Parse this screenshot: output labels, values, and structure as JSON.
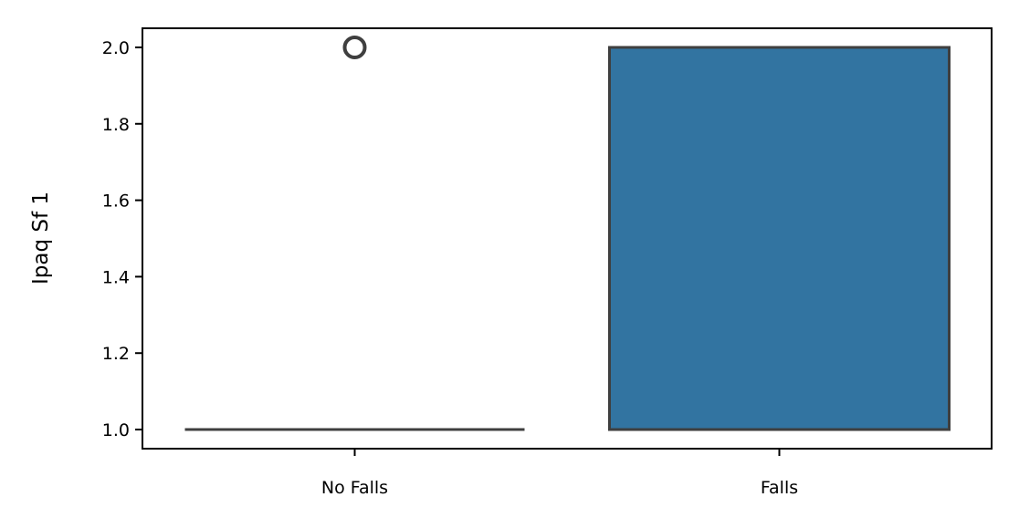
{
  "chart_data": {
    "type": "box",
    "title": "",
    "xlabel": "",
    "ylabel": "Ipaq Sf 1",
    "categories": [
      "No Falls",
      "Falls"
    ],
    "ylim": [
      0.95,
      2.05
    ],
    "yticks": [
      1.0,
      1.2,
      1.4,
      1.6,
      1.8,
      2.0
    ],
    "ytick_labels": [
      "1.0",
      "1.2",
      "1.4",
      "1.6",
      "1.8",
      "2.0"
    ],
    "boxes": [
      {
        "category": "No Falls",
        "q1": 1.0,
        "median": 1.0,
        "q3": 1.0,
        "whisker_low": 1.0,
        "whisker_high": 1.0,
        "outliers": [
          2.0
        ],
        "fill": "#ffffff"
      },
      {
        "category": "Falls",
        "q1": 1.0,
        "median": 1.0,
        "q3": 2.0,
        "whisker_low": 1.0,
        "whisker_high": 2.0,
        "outliers": [],
        "fill": "#3274a1"
      }
    ],
    "grid": false,
    "colors": {
      "box_fill": "#3274a1",
      "box_edge": "#3f3f3f",
      "axis": "#000000"
    }
  }
}
